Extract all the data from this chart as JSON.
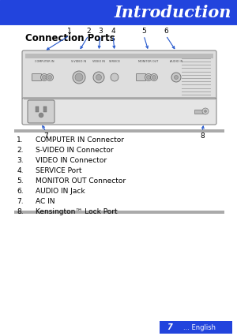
{
  "title": "Introduction",
  "title_bg_color": "#2244DD",
  "title_text_color": "#FFFFFF",
  "section_heading": "Connection Ports",
  "list_items": [
    "COMPUTER IN Connector",
    "S-VIDEO IN Connector",
    "VIDEO IN Connector",
    "SERVICE Port",
    "MONITOR OUT Connector",
    "AUDIO IN Jack",
    "AC IN",
    "Kensington™ Lock Port"
  ],
  "page_number": "7",
  "page_label": "... English",
  "footer_bg": "#2244DD",
  "bg_color": "#FFFFFF",
  "gray_bar_color": "#AAAAAA",
  "arrow_color": "#2255CC",
  "proj_body": "#D8D8D8",
  "proj_dark": "#AAAAAA",
  "proj_edge": "#888888"
}
